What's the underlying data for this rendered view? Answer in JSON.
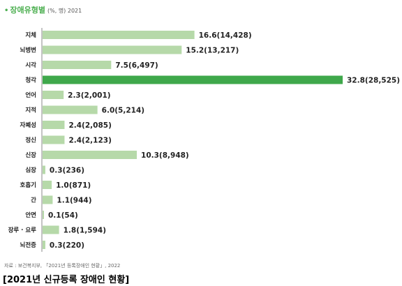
{
  "header": {
    "bullet": "•",
    "title": "장애유형별",
    "subtitle": "(%, 명) 2021"
  },
  "source_note": "자료 : 보건복지부, 「2021년 등록장애인 현황」, 2022",
  "caption": "[2021년 신규등록 장애인 현황]",
  "colors": {
    "bar": "#b6d9a9",
    "highlight": "#3fa84b",
    "axis": "#8a8a8a"
  },
  "chart_data": {
    "type": "bar",
    "orientation": "horizontal",
    "title": "장애유형별",
    "subtitle": "(%, 명) 2021",
    "categories": [
      "지체",
      "뇌병변",
      "시각",
      "청각",
      "언어",
      "지적",
      "자폐성",
      "정신",
      "신장",
      "심장",
      "호흡기",
      "간",
      "안면",
      "장루 · 요루",
      "뇌전증"
    ],
    "values": [
      16.6,
      15.2,
      7.5,
      32.8,
      2.3,
      6.0,
      2.4,
      2.4,
      10.3,
      0.3,
      1.0,
      1.1,
      0.1,
      1.8,
      0.3
    ],
    "counts": [
      14428,
      13217,
      6497,
      28525,
      2001,
      5214,
      2085,
      2123,
      8948,
      236,
      871,
      944,
      54,
      1594,
      220
    ],
    "value_labels": [
      "16.6(14,428)",
      "15.2(13,217)",
      "7.5(6,497)",
      "32.8(28,525)",
      "2.3(2,001)",
      "6.0(5,214)",
      "2.4(2,085)",
      "2.4(2,123)",
      "10.3(8,948)",
      "0.3(236)",
      "1.0(871)",
      "1.1(944)",
      "0.1(54)",
      "1.8(1,594)",
      "0.3(220)"
    ],
    "highlight_index": 3,
    "xlim": [
      0,
      32.8
    ],
    "grid": false,
    "legend": "none"
  }
}
